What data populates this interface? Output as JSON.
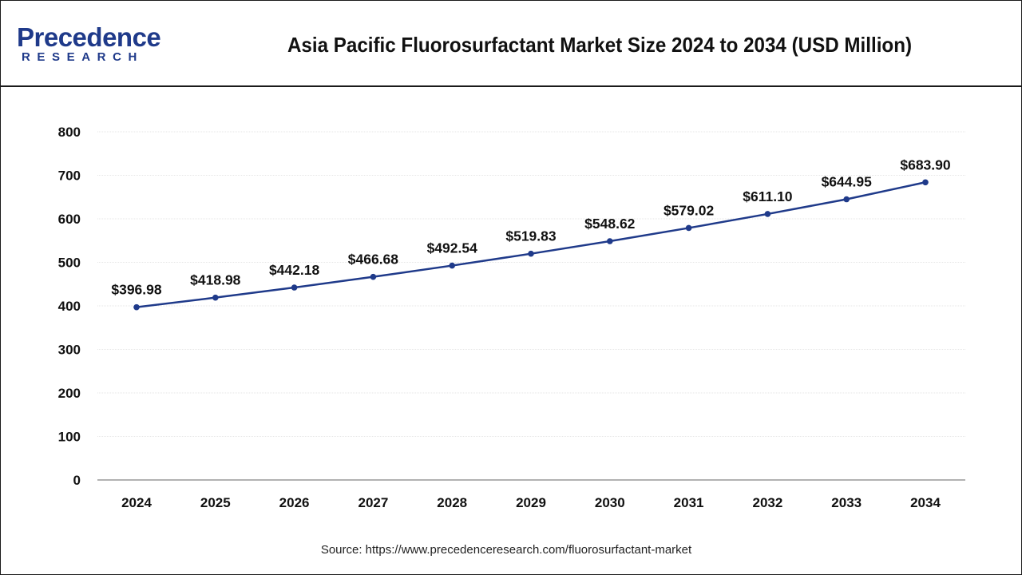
{
  "brand": {
    "logo_top": "Precedence",
    "logo_bottom": "RESEARCH",
    "color": "#1f3a8a"
  },
  "title": "Asia Pacific Fluorosurfactant Market Size 2024 to 2034 (USD Million)",
  "source": "Source: https://www.precedenceresearch.com/fluorosurfactant-market",
  "chart_data": {
    "type": "line",
    "title": "Asia Pacific Fluorosurfactant Market Size 2024 to 2034 (USD Million)",
    "xlabel": "",
    "ylabel": "",
    "categories": [
      "2024",
      "2025",
      "2026",
      "2027",
      "2028",
      "2029",
      "2030",
      "2031",
      "2032",
      "2033",
      "2034"
    ],
    "series": [
      {
        "values": [
          396.98,
          418.98,
          442.18,
          466.68,
          492.54,
          519.83,
          548.62,
          579.02,
          611.1,
          644.95,
          683.9
        ],
        "labels": [
          "$396.98",
          "$418.98",
          "$442.18",
          "$466.68",
          "$492.54",
          "$519.83",
          "$548.62",
          "$579.02",
          "$611.10",
          "$644.95",
          "$683.90"
        ],
        "color": "#1f3a8a"
      }
    ],
    "ylim": [
      0,
      800
    ],
    "yticks": [
      "0",
      "100",
      "200",
      "300",
      "400",
      "500",
      "600",
      "700",
      "800"
    ],
    "grid": true,
    "legend": "none"
  }
}
